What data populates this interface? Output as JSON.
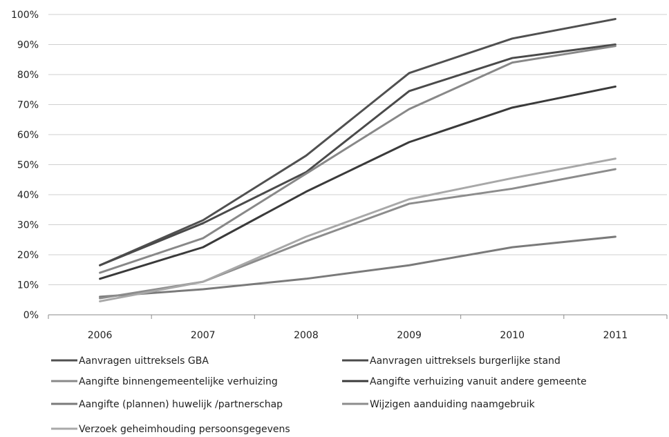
{
  "chart_data": {
    "type": "line",
    "x": [
      "2006",
      "2007",
      "2008",
      "2009",
      "2010",
      "2011"
    ],
    "ylim": [
      0,
      100
    ],
    "y_ticks": [
      "0%",
      "10%",
      "20%",
      "30%",
      "40%",
      "50%",
      "60%",
      "70%",
      "80%",
      "90%",
      "100%"
    ],
    "grid": true,
    "legend_position": "bottom",
    "series": [
      {
        "name": "Aanvragen uittreksels GBA",
        "values": [
          16.5,
          31.5,
          53,
          80.5,
          92,
          98.5
        ],
        "color": "#505050"
      },
      {
        "name": "Aanvragen uittreksels burgerlijke stand",
        "values": [
          16.5,
          30.5,
          47.5,
          74.5,
          85.5,
          90
        ],
        "color": "#4a4a4a"
      },
      {
        "name": "Aangifte binnengemeentelijke verhuizing",
        "values": [
          14,
          25.5,
          47,
          68.5,
          84,
          89.5
        ],
        "color": "#888888"
      },
      {
        "name": "Aangifte verhuizing vanuit andere gemeente",
        "values": [
          12,
          22.5,
          41,
          57.5,
          69,
          76
        ],
        "color": "#3a3a3a"
      },
      {
        "name": "Aangifte (plannen) huwelijk /partnerschap",
        "values": [
          6,
          8.5,
          12,
          16.5,
          22.5,
          26
        ],
        "color": "#7a7a7a"
      },
      {
        "name": "Wijzigen aanduiding naamgebruik",
        "values": [
          5.5,
          11,
          24.5,
          37,
          42,
          48.5
        ],
        "color": "#8c8c8c"
      },
      {
        "name": "Verzoek geheimhouding persoonsgegevens",
        "values": [
          4.5,
          11,
          26,
          38.5,
          45.5,
          52
        ],
        "color": "#a8a8a8"
      }
    ]
  }
}
